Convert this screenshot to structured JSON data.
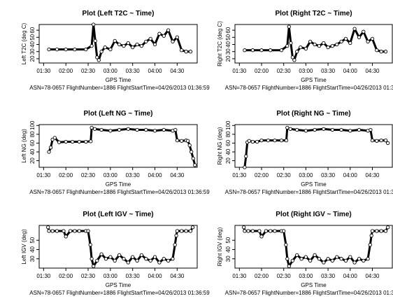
{
  "figure": {
    "caption": "ASN=78-0657  FlightNumber=1886  FlightStartTime=04/26/2013 01:36:59",
    "x_tick_labels": [
      "01:30",
      "02:00",
      "02:30",
      "03:00",
      "03:30",
      "04:00",
      "04:30"
    ]
  },
  "chart_data": [
    {
      "type": "scatter",
      "title": "Plot (Left T2C ~ Time)",
      "xlabel": "GPS Time",
      "ylabel": "Left T2C (deg C)",
      "x_unit": "hours since 00:00 GPS time",
      "xlim": [
        1.4,
        4.95
      ],
      "ylim": [
        14,
        68
      ],
      "y_ticks": [
        "20",
        "30",
        "40",
        "50",
        "60"
      ],
      "marker": "open-circle",
      "color": "#000000",
      "x": [
        1.62,
        1.8,
        2.0,
        2.2,
        2.45,
        2.58,
        2.62,
        2.66,
        2.7,
        2.74,
        2.8,
        2.88,
        3.0,
        3.1,
        3.2,
        3.3,
        3.4,
        3.5,
        3.6,
        3.7,
        3.8,
        3.9,
        4.0,
        4.1,
        4.2,
        4.3,
        4.4,
        4.5,
        4.6,
        4.7,
        4.8
      ],
      "y": [
        33,
        33,
        33,
        33,
        33,
        38,
        68,
        45,
        22,
        18,
        30,
        36,
        33,
        45,
        40,
        38,
        42,
        36,
        40,
        38,
        44,
        48,
        40,
        55,
        52,
        60,
        44,
        50,
        32,
        30,
        30
      ]
    },
    {
      "type": "scatter",
      "title": "Plot (Right T2C ~ Time)",
      "xlabel": "GPS Time",
      "ylabel": "Right T2C (deg C)",
      "x_unit": "hours since 00:00 GPS time",
      "xlim": [
        1.4,
        4.95
      ],
      "ylim": [
        14,
        68
      ],
      "y_ticks": [
        "20",
        "30",
        "40",
        "50",
        "60"
      ],
      "marker": "open-circle",
      "color": "#000000",
      "x": [
        1.62,
        1.8,
        2.0,
        2.2,
        2.45,
        2.58,
        2.62,
        2.66,
        2.7,
        2.74,
        2.8,
        2.88,
        3.0,
        3.1,
        3.2,
        3.3,
        3.4,
        3.5,
        3.6,
        3.7,
        3.8,
        3.9,
        4.0,
        4.1,
        4.2,
        4.3,
        4.4,
        4.5,
        4.6,
        4.7,
        4.8
      ],
      "y": [
        32,
        32,
        32,
        32,
        32,
        38,
        65,
        42,
        22,
        18,
        30,
        36,
        34,
        44,
        40,
        38,
        42,
        36,
        38,
        40,
        44,
        48,
        42,
        62,
        50,
        58,
        44,
        48,
        32,
        30,
        30
      ]
    },
    {
      "type": "scatter",
      "title": "Plot (Left NG ~ Time)",
      "xlabel": "GPS Time",
      "ylabel": "Left NG (deg)",
      "x_unit": "hours since 00:00 GPS time",
      "xlim": [
        1.4,
        4.95
      ],
      "ylim": [
        5,
        102
      ],
      "y_ticks": [
        "20",
        "40",
        "60",
        "80",
        "100"
      ],
      "marker": "open-circle",
      "color": "#000000",
      "x": [
        1.62,
        1.66,
        1.7,
        1.75,
        1.85,
        2.0,
        2.15,
        2.3,
        2.45,
        2.56,
        2.58,
        2.65,
        2.8,
        3.0,
        3.2,
        3.4,
        3.6,
        3.8,
        4.0,
        4.2,
        4.4,
        4.46,
        4.5,
        4.6,
        4.7,
        4.74,
        4.78,
        4.82,
        4.86,
        4.9
      ],
      "y": [
        40,
        50,
        68,
        72,
        62,
        63,
        63,
        63,
        63,
        64,
        95,
        92,
        90,
        88,
        90,
        92,
        90,
        90,
        88,
        90,
        88,
        90,
        66,
        65,
        66,
        65,
        55,
        40,
        25,
        10
      ]
    },
    {
      "type": "scatter",
      "title": "Plot (Right NG ~ Time)",
      "xlabel": "GPS Time",
      "ylabel": "Right NG (deg)",
      "x_unit": "hours since 00:00 GPS time",
      "xlim": [
        1.4,
        4.95
      ],
      "ylim": [
        5,
        102
      ],
      "y_ticks": [
        "20",
        "40",
        "60",
        "80",
        "100"
      ],
      "marker": "open-circle",
      "color": "#000000",
      "x": [
        1.62,
        1.65,
        1.68,
        1.72,
        1.8,
        1.9,
        2.0,
        2.15,
        2.3,
        2.45,
        2.56,
        2.58,
        2.65,
        2.8,
        3.0,
        3.2,
        3.4,
        3.6,
        3.8,
        4.0,
        4.2,
        4.4,
        4.46,
        4.5,
        4.6,
        4.7,
        4.8,
        4.85
      ],
      "y": [
        5,
        30,
        62,
        65,
        63,
        63,
        66,
        66,
        66,
        66,
        66,
        95,
        92,
        90,
        88,
        90,
        92,
        90,
        90,
        88,
        90,
        88,
        90,
        66,
        65,
        66,
        66,
        60
      ]
    },
    {
      "type": "scatter",
      "title": "Plot (Left IGV ~ Time)",
      "xlabel": "GPS Time",
      "ylabel": "Left IGV (deg)",
      "x_unit": "hours since 00:00 GPS time",
      "xlim": [
        1.4,
        4.95
      ],
      "ylim": [
        20,
        66
      ],
      "y_ticks": [
        "30",
        "40",
        "50"
      ],
      "marker": "open-circle",
      "color": "#000000",
      "x": [
        1.6,
        1.62,
        1.7,
        1.8,
        1.95,
        2.0,
        2.1,
        2.2,
        2.3,
        2.45,
        2.5,
        2.55,
        2.58,
        2.62,
        2.7,
        2.8,
        2.9,
        3.0,
        3.1,
        3.2,
        3.3,
        3.4,
        3.5,
        3.6,
        3.7,
        3.8,
        3.9,
        4.0,
        4.1,
        4.2,
        4.3,
        4.4,
        4.45,
        4.48,
        4.5,
        4.6,
        4.7,
        4.8,
        4.85
      ],
      "y": [
        64,
        60,
        60,
        60,
        60,
        54,
        60,
        60,
        60,
        60,
        60,
        45,
        30,
        22,
        28,
        35,
        30,
        32,
        28,
        34,
        30,
        26,
        32,
        28,
        34,
        30,
        28,
        32,
        26,
        30,
        28,
        30,
        45,
        55,
        60,
        60,
        60,
        60,
        64
      ]
    },
    {
      "type": "scatter",
      "title": "Plot (Right IGV ~ Time)",
      "xlabel": "GPS Time",
      "ylabel": "Right IGV (deg)",
      "x_unit": "hours since 00:00 GPS time",
      "xlim": [
        1.4,
        4.95
      ],
      "ylim": [
        20,
        66
      ],
      "y_ticks": [
        "30",
        "40",
        "50"
      ],
      "marker": "open-circle",
      "color": "#000000",
      "x": [
        1.6,
        1.62,
        1.7,
        1.8,
        1.95,
        2.0,
        2.1,
        2.2,
        2.3,
        2.45,
        2.5,
        2.55,
        2.58,
        2.62,
        2.7,
        2.8,
        2.9,
        3.0,
        3.1,
        3.2,
        3.3,
        3.4,
        3.5,
        3.6,
        3.7,
        3.8,
        3.9,
        4.0,
        4.1,
        4.2,
        4.3,
        4.4,
        4.45,
        4.48,
        4.5,
        4.6,
        4.7,
        4.8,
        4.85
      ],
      "y": [
        64,
        60,
        60,
        60,
        60,
        54,
        60,
        60,
        60,
        60,
        60,
        45,
        30,
        22,
        28,
        34,
        30,
        32,
        28,
        34,
        30,
        26,
        30,
        28,
        32,
        30,
        28,
        32,
        26,
        30,
        28,
        30,
        45,
        55,
        60,
        60,
        60,
        60,
        64
      ]
    }
  ]
}
